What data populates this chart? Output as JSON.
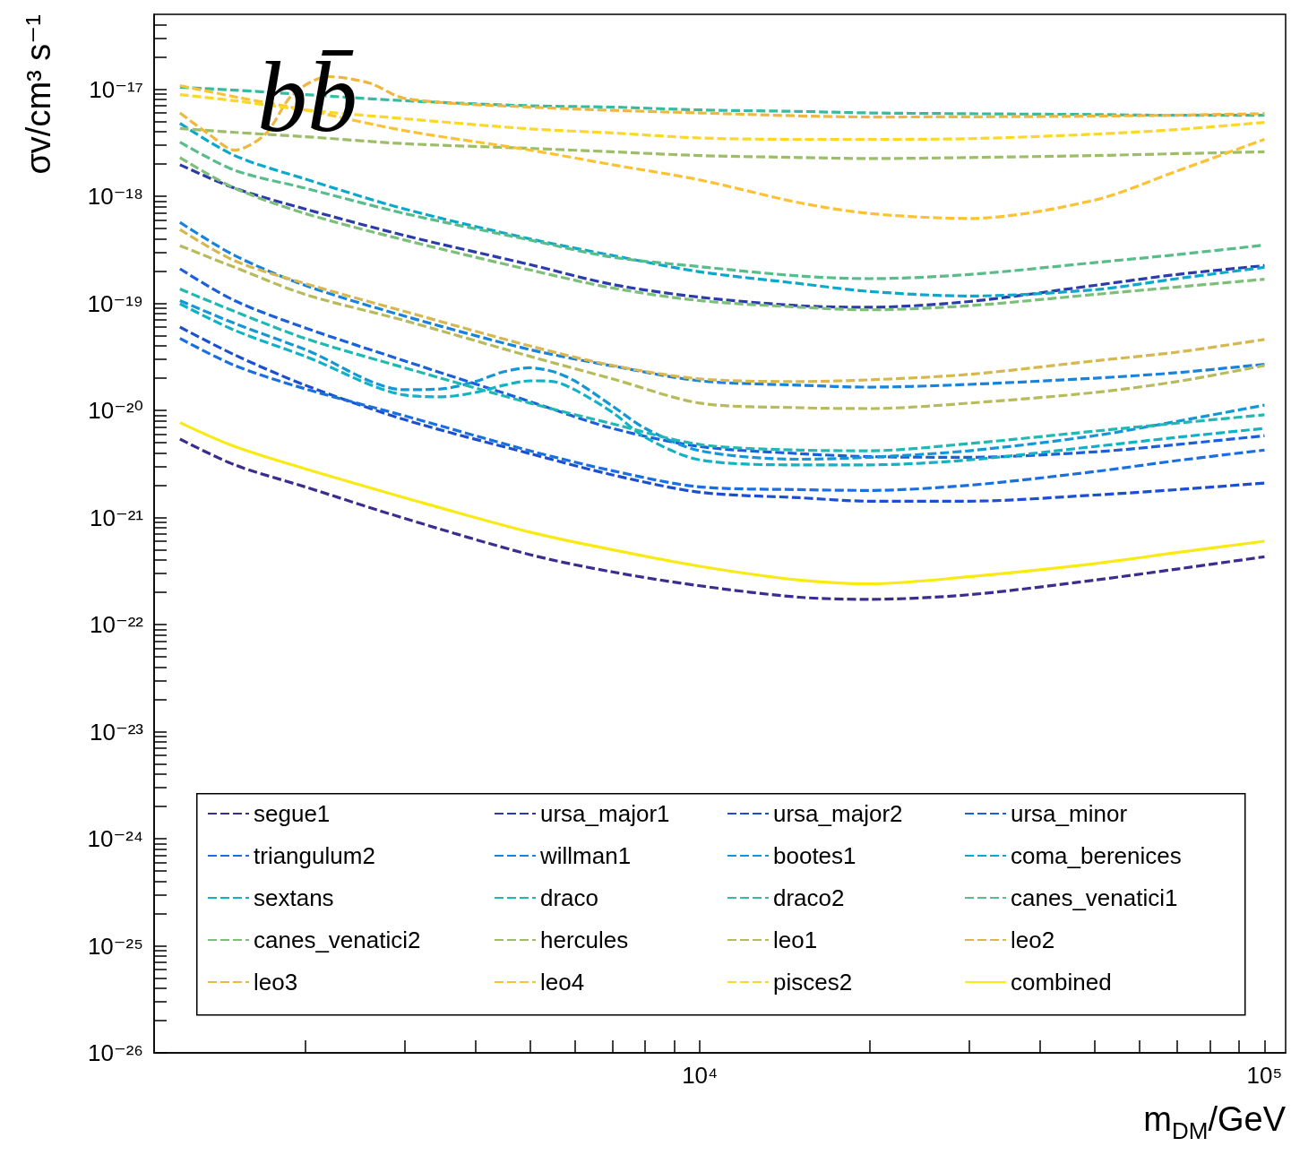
{
  "chart_data": {
    "type": "line",
    "xlabel": "m$_{DM}$/GeV",
    "ylabel": "σv/cm³ s⁻¹",
    "annotations": [
      "bb̄"
    ],
    "log": "xy",
    "grid": false,
    "legend": "bottom",
    "marker": "none",
    "line_style": "dashed",
    "xlim": [
      1080,
      109000
    ],
    "ylim": [
      1e-26,
      5e-17
    ],
    "xticks": [
      {
        "value": 2000,
        "label": null
      },
      {
        "value": 3000,
        "label": null
      },
      {
        "value": 4000,
        "label": null
      },
      {
        "value": 5000,
        "label": null
      },
      {
        "value": 6000,
        "label": null
      },
      {
        "value": 7000,
        "label": null
      },
      {
        "value": 8000,
        "label": null
      },
      {
        "value": 9000,
        "label": null
      },
      {
        "value": 10000,
        "label": "10⁴"
      },
      {
        "value": 20000,
        "label": null
      },
      {
        "value": 30000,
        "label": null
      },
      {
        "value": 40000,
        "label": null
      },
      {
        "value": 50000,
        "label": null
      },
      {
        "value": 60000,
        "label": null
      },
      {
        "value": 70000,
        "label": null
      },
      {
        "value": 80000,
        "label": null
      },
      {
        "value": 90000,
        "label": null
      },
      {
        "value": 100000,
        "label": "10⁵"
      }
    ],
    "yticks": [
      {
        "value": 1e-26,
        "label": "10⁻²⁶"
      },
      {
        "value": 2e-26,
        "label": null
      },
      {
        "value": 3e-26,
        "label": null
      },
      {
        "value": 4e-26,
        "label": null
      },
      {
        "value": 5e-26,
        "label": null
      },
      {
        "value": 6e-26,
        "label": null
      },
      {
        "value": 7e-26,
        "label": null
      },
      {
        "value": 8e-26,
        "label": null
      },
      {
        "value": 9e-26,
        "label": null
      },
      {
        "value": 1e-25,
        "label": "10⁻²⁵"
      },
      {
        "value": 2e-25,
        "label": null
      },
      {
        "value": 3e-25,
        "label": null
      },
      {
        "value": 4e-25,
        "label": null
      },
      {
        "value": 5e-25,
        "label": null
      },
      {
        "value": 6e-25,
        "label": null
      },
      {
        "value": 7e-25,
        "label": null
      },
      {
        "value": 8e-25,
        "label": null
      },
      {
        "value": 9e-25,
        "label": null
      },
      {
        "value": 1e-24,
        "label": "10⁻²⁴"
      },
      {
        "value": 2e-24,
        "label": null
      },
      {
        "value": 3e-24,
        "label": null
      },
      {
        "value": 4e-24,
        "label": null
      },
      {
        "value": 5e-24,
        "label": null
      },
      {
        "value": 6e-24,
        "label": null
      },
      {
        "value": 7e-24,
        "label": null
      },
      {
        "value": 8e-24,
        "label": null
      },
      {
        "value": 9e-24,
        "label": null
      },
      {
        "value": 1e-23,
        "label": "10⁻²³"
      },
      {
        "value": 2e-23,
        "label": null
      },
      {
        "value": 3e-23,
        "label": null
      },
      {
        "value": 4e-23,
        "label": null
      },
      {
        "value": 5e-23,
        "label": null
      },
      {
        "value": 6e-23,
        "label": null
      },
      {
        "value": 7e-23,
        "label": null
      },
      {
        "value": 8e-23,
        "label": null
      },
      {
        "value": 9e-23,
        "label": null
      },
      {
        "value": 1e-22,
        "label": "10⁻²²"
      },
      {
        "value": 2e-22,
        "label": null
      },
      {
        "value": 3e-22,
        "label": null
      },
      {
        "value": 4e-22,
        "label": null
      },
      {
        "value": 5e-22,
        "label": null
      },
      {
        "value": 6e-22,
        "label": null
      },
      {
        "value": 7e-22,
        "label": null
      },
      {
        "value": 8e-22,
        "label": null
      },
      {
        "value": 9e-22,
        "label": null
      },
      {
        "value": 1e-21,
        "label": "10⁻²¹"
      },
      {
        "value": 2e-21,
        "label": null
      },
      {
        "value": 3e-21,
        "label": null
      },
      {
        "value": 4e-21,
        "label": null
      },
      {
        "value": 5e-21,
        "label": null
      },
      {
        "value": 6e-21,
        "label": null
      },
      {
        "value": 7e-21,
        "label": null
      },
      {
        "value": 8e-21,
        "label": null
      },
      {
        "value": 9e-21,
        "label": null
      },
      {
        "value": 1e-20,
        "label": "10⁻²⁰"
      },
      {
        "value": 2e-20,
        "label": null
      },
      {
        "value": 3e-20,
        "label": null
      },
      {
        "value": 4e-20,
        "label": null
      },
      {
        "value": 5e-20,
        "label": null
      },
      {
        "value": 6e-20,
        "label": null
      },
      {
        "value": 7e-20,
        "label": null
      },
      {
        "value": 8e-20,
        "label": null
      },
      {
        "value": 9e-20,
        "label": null
      },
      {
        "value": 1e-19,
        "label": "10⁻¹⁹"
      },
      {
        "value": 2e-19,
        "label": null
      },
      {
        "value": 3e-19,
        "label": null
      },
      {
        "value": 4e-19,
        "label": null
      },
      {
        "value": 5e-19,
        "label": null
      },
      {
        "value": 6e-19,
        "label": null
      },
      {
        "value": 7e-19,
        "label": null
      },
      {
        "value": 8e-19,
        "label": null
      },
      {
        "value": 9e-19,
        "label": null
      },
      {
        "value": 1e-18,
        "label": "10⁻¹⁸"
      },
      {
        "value": 2e-18,
        "label": null
      },
      {
        "value": 3e-18,
        "label": null
      },
      {
        "value": 4e-18,
        "label": null
      },
      {
        "value": 5e-18,
        "label": null
      },
      {
        "value": 6e-18,
        "label": null
      },
      {
        "value": 7e-18,
        "label": null
      },
      {
        "value": 8e-18,
        "label": null
      },
      {
        "value": 9e-18,
        "label": null
      },
      {
        "value": 1e-17,
        "label": "10⁻¹⁷"
      },
      {
        "value": 2e-17,
        "label": null
      },
      {
        "value": 3e-17,
        "label": null
      },
      {
        "value": 4e-17,
        "label": null
      }
    ],
    "x": [
      1200,
      1500,
      2000,
      3000,
      5000,
      7000,
      10000,
      15000,
      20000,
      30000,
      50000,
      70000,
      100000
    ],
    "series": [
      {
        "name": "segue1",
        "color": "#3b2d8f",
        "values": [
          5.4e-21,
          3.1e-21,
          1.93e-21,
          9.8e-22,
          4.5e-22,
          3.1e-22,
          2.3e-22,
          1.8e-22,
          1.72e-22,
          1.9e-22,
          2.6e-22,
          3.3e-22,
          4.3e-22
        ]
      },
      {
        "name": "ursa_major1",
        "color": "#2c3bab",
        "values": [
          1.97e-18,
          1.19e-18,
          7.6e-19,
          4.3e-19,
          2.3e-19,
          1.5e-19,
          1.14e-19,
          9.5e-20,
          9.2e-20,
          1.04e-19,
          1.47e-19,
          1.86e-19,
          2.25e-19
        ]
      },
      {
        "name": "ursa_major2",
        "color": "#1c4fd0",
        "values": [
          6e-20,
          3.3e-20,
          1.72e-20,
          8.2e-21,
          3.95e-21,
          2.5e-21,
          1.72e-21,
          1.53e-21,
          1.42e-21,
          1.42e-21,
          1.62e-21,
          1.82e-21,
          2.1e-21
        ]
      },
      {
        "name": "ursa_minor",
        "color": "#1a5fdc",
        "values": [
          2.1e-19,
          1.06e-19,
          5.9e-20,
          2.9e-20,
          1.21e-20,
          6.8e-21,
          4.6e-21,
          3.95e-21,
          3.7e-21,
          3.65e-21,
          4.1e-21,
          4.8e-21,
          5.8e-21
        ]
      },
      {
        "name": "triangulum2",
        "color": "#1a6fe0",
        "values": [
          4.7e-20,
          2.63e-20,
          1.59e-20,
          8.9e-21,
          4.2e-21,
          2.73e-21,
          1.93e-21,
          1.82e-21,
          1.79e-21,
          2e-21,
          2.68e-21,
          3.4e-21,
          4.26e-21
        ]
      },
      {
        "name": "willman1",
        "color": "#1883dc",
        "values": [
          5.7e-19,
          2.8e-19,
          1.47e-19,
          7.6e-20,
          3.7e-20,
          2.6e-20,
          1.89e-20,
          1.72e-20,
          1.65e-20,
          1.75e-20,
          2e-20,
          2.25e-20,
          2.7e-20
        ]
      },
      {
        "name": "bootes1",
        "color": "#1497d6",
        "x": [
          1200,
          1500,
          2000,
          3000,
          3500,
          4000,
          4500,
          5000,
          5500,
          6000,
          7000,
          8000,
          10000,
          15000,
          20000,
          30000,
          50000,
          70000,
          100000
        ],
        "values": [
          1.06e-19,
          6.5e-20,
          3.7e-20,
          1.56e-20,
          1.59e-20,
          1.86e-20,
          2.3e-20,
          2.5e-20,
          2.3e-20,
          1.89e-20,
          1.1e-20,
          6.8e-21,
          4.2e-21,
          3.5e-21,
          3.65e-21,
          4.2e-21,
          5.8e-21,
          7.9e-21,
          1.12e-20
        ]
      },
      {
        "name": "coma_berenices",
        "color": "#0ca8cc",
        "values": [
          4.8e-18,
          2.4e-18,
          1.45e-18,
          7.6e-19,
          4e-19,
          2.8e-19,
          1.97e-19,
          1.53e-19,
          1.29e-19,
          1.17e-19,
          1.34e-19,
          1.7e-19,
          2.17e-19
        ]
      },
      {
        "name": "sextans",
        "color": "#12b2c6",
        "x": [
          1200,
          1500,
          2000,
          3000,
          3500,
          4000,
          4500,
          5000,
          5500,
          6000,
          7000,
          8000,
          10000,
          15000,
          20000,
          30000,
          50000,
          70000,
          100000
        ],
        "values": [
          9.9e-20,
          5.6e-20,
          3.2e-20,
          1.39e-20,
          1.34e-20,
          1.47e-20,
          1.72e-20,
          1.89e-20,
          1.86e-20,
          1.56e-20,
          9.6e-21,
          5.6e-21,
          3.45e-21,
          3.1e-21,
          3.1e-21,
          3.45e-21,
          4.6e-21,
          5.6e-21,
          6.8e-21
        ]
      },
      {
        "name": "draco",
        "color": "#1fb8b2",
        "values": [
          1.36e-19,
          8.4e-20,
          4.7e-20,
          2.5e-20,
          1.17e-20,
          7.5e-21,
          4.8e-21,
          4.26e-21,
          4.2e-21,
          4.9e-21,
          6.4e-21,
          7.6e-21,
          9.1e-21
        ]
      },
      {
        "name": "draco2",
        "color": "#36bba0",
        "values": [
          1.04e-17,
          9.8e-18,
          8.9e-18,
          7.8e-18,
          7e-18,
          6.8e-18,
          6.4e-18,
          6.2e-18,
          6e-18,
          5.9e-18,
          5.8e-18,
          5.7e-18,
          5.7e-18
        ]
      },
      {
        "name": "canes_venatici1",
        "color": "#58bd8a",
        "values": [
          3.2e-18,
          1.75e-18,
          1.19e-18,
          6.9e-19,
          3.9e-19,
          2.7e-19,
          2.2e-19,
          1.8e-19,
          1.7e-19,
          1.86e-19,
          2.4e-19,
          2.85e-19,
          3.5e-19
        ]
      },
      {
        "name": "canes_venatici2",
        "color": "#7cbf78",
        "values": [
          2.3e-18,
          1.19e-18,
          6.9e-19,
          3.9e-19,
          2.05e-19,
          1.39e-19,
          1.06e-19,
          9.2e-20,
          8.7e-20,
          9.5e-20,
          1.21e-19,
          1.42e-19,
          1.68e-19
        ]
      },
      {
        "name": "hercules",
        "color": "#9cbe68",
        "values": [
          4.3e-18,
          3.95e-18,
          3.6e-18,
          3.1e-18,
          2.8e-18,
          2.6e-18,
          2.4e-18,
          2.3e-18,
          2.25e-18,
          2.3e-18,
          2.4e-18,
          2.5e-18,
          2.6e-18
        ]
      },
      {
        "name": "leo1",
        "color": "#b8bb5c",
        "values": [
          3.45e-19,
          2.17e-19,
          1.21e-19,
          6.9e-20,
          3.2e-20,
          1.97e-20,
          1.17e-20,
          1.06e-20,
          1.04e-20,
          1.17e-20,
          1.47e-20,
          1.86e-20,
          2.63e-20
        ]
      },
      {
        "name": "leo2",
        "color": "#d6b750",
        "values": [
          4.9e-19,
          2.5e-19,
          1.53e-19,
          8.4e-20,
          4e-20,
          2.63e-20,
          1.97e-20,
          1.86e-20,
          1.93e-20,
          2.17e-20,
          2.9e-20,
          3.5e-20,
          4.6e-20
        ]
      },
      {
        "name": "leo3",
        "color": "#eeb840",
        "x": [
          1200,
          1350,
          1500,
          1700,
          1900,
          2200,
          2600,
          3000,
          5000,
          10000,
          20000,
          50000,
          100000
        ],
        "values": [
          6e-18,
          3.8e-18,
          2.7e-18,
          3.8e-18,
          8.9e-18,
          1.31e-17,
          1.14e-17,
          8.2e-18,
          6.8e-18,
          6e-18,
          5.5e-18,
          5.6e-18,
          5.9e-18
        ]
      },
      {
        "name": "leo4",
        "color": "#fcc234",
        "values": [
          1.08e-17,
          8.5e-18,
          6.4e-18,
          4.1e-18,
          2.7e-18,
          1.97e-18,
          1.42e-18,
          8.7e-19,
          6.9e-19,
          6.2e-19,
          9.2e-19,
          1.72e-18,
          3.4e-18
        ]
      },
      {
        "name": "pisces2",
        "color": "#fcd826",
        "values": [
          8.9e-18,
          7.8e-18,
          6.4e-18,
          5.3e-18,
          4.26e-18,
          3.9e-18,
          3.5e-18,
          3.4e-18,
          3.4e-18,
          3.45e-18,
          3.8e-18,
          4.2e-18,
          4.9e-18
        ]
      },
      {
        "name": "combined",
        "color": "#f9ea14",
        "line_style": "solid",
        "values": [
          7.7e-21,
          4.6e-21,
          2.85e-21,
          1.53e-21,
          7.3e-22,
          5e-22,
          3.5e-22,
          2.6e-22,
          2.4e-22,
          2.8e-22,
          3.7e-22,
          4.7e-22,
          6e-22
        ]
      }
    ]
  }
}
